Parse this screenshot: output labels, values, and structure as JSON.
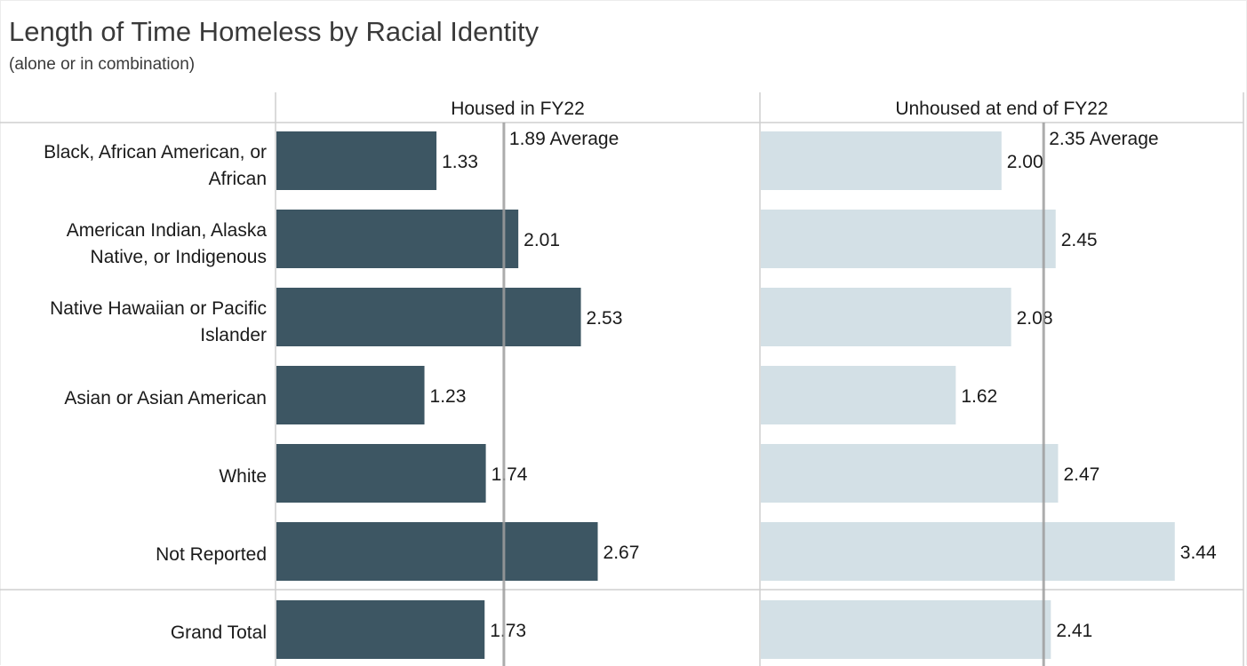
{
  "title": "Length of Time Homeless by Racial Identity",
  "subtitle": "(alone or in combination)",
  "colors": {
    "housed": "#3d5663",
    "unhoused": "#d3e0e6",
    "average_line": "#9e9e9e",
    "grid": "#cfcfcf"
  },
  "chart_data": {
    "type": "bar",
    "orientation": "horizontal",
    "categories": [
      [
        "Black, African American, or",
        "African"
      ],
      [
        "American Indian, Alaska",
        "Native, or Indigenous"
      ],
      [
        "Native Hawaiian or Pacific",
        "Islander"
      ],
      [
        "Asian or Asian American"
      ],
      [
        "White"
      ],
      [
        "Not Reported"
      ],
      [
        "Grand Total"
      ]
    ],
    "series": [
      {
        "name": "Housed in FY22",
        "values": [
          1.33,
          2.01,
          2.53,
          1.23,
          1.74,
          2.67,
          1.73
        ],
        "labels": [
          "1.33",
          "2.01",
          "2.53",
          "1.23",
          "1.74",
          "2.67",
          "1.73"
        ],
        "average": 1.89,
        "average_label": "1.89 Average",
        "color": "#3d5663"
      },
      {
        "name": "Unhoused at end of FY22",
        "values": [
          2.0,
          2.45,
          2.08,
          1.62,
          2.47,
          3.44,
          2.41
        ],
        "labels": [
          "2.00",
          "2.45",
          "2.08",
          "1.62",
          "2.47",
          "3.44",
          "2.41"
        ],
        "average": 2.35,
        "average_label": "2.35 Average",
        "color": "#d3e0e6"
      }
    ],
    "xlim": [
      0,
      4.0
    ],
    "grid": false,
    "legend": "none"
  }
}
